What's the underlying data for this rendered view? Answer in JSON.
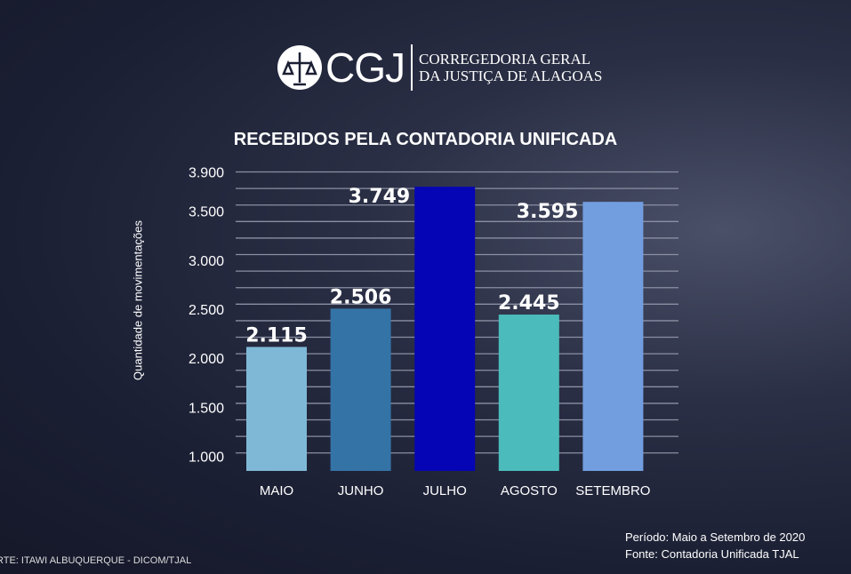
{
  "header": {
    "logo_text": "CGJ",
    "org_line1": "CORREGEDORIA GERAL",
    "org_line2": "DA JUSTIÇA DE ALAGOAS"
  },
  "chart_data": {
    "type": "bar",
    "title": "RECEBIDOS PELA CONTADORIA UNIFICADA",
    "xlabel": "",
    "ylabel": "Quantidade de movimentações",
    "categories": [
      "MAIO",
      "JUNHO",
      "JULHO",
      "AGOSTO",
      "SETEMBRO"
    ],
    "values": [
      2115,
      2506,
      3749,
      2445,
      3595
    ],
    "data_labels": [
      "2.115",
      "2.506",
      "3.749",
      "2.445",
      "3.595"
    ],
    "colors": [
      "#7fb8d6",
      "#3473a6",
      "#0505b5",
      "#4bbcbb",
      "#729ee0"
    ],
    "yticks": [
      {
        "value": 1000,
        "label": "1.000"
      },
      {
        "value": 1500,
        "label": "1.500"
      },
      {
        "value": 2000,
        "label": "2.000"
      },
      {
        "value": 2500,
        "label": "2.500"
      },
      {
        "value": 3000,
        "label": "3.000"
      },
      {
        "value": 3500,
        "label": "3.500"
      },
      {
        "value": 3900,
        "label": "3.900"
      }
    ],
    "ylim": [
      850,
      3950
    ],
    "grid": true
  },
  "footer": {
    "period": "Período: Maio a Setembro de 2020",
    "source": "Fonte: Contadoria Unificada TJAL",
    "credit": "RTE: ITAWI ALBUQUERQUE - DICOM/TJAL"
  }
}
